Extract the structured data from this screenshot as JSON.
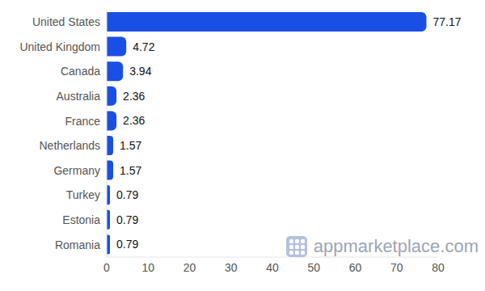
{
  "chart_data": {
    "type": "bar",
    "orientation": "horizontal",
    "categories": [
      "United States",
      "United Kingdom",
      "Canada",
      "Australia",
      "France",
      "Netherlands",
      "Germany",
      "Turkey",
      "Estonia",
      "Romania"
    ],
    "values": [
      77.17,
      4.72,
      3.94,
      2.36,
      2.36,
      1.57,
      1.57,
      0.79,
      0.79,
      0.79
    ],
    "color": "#1a4fe6",
    "xlim": [
      0,
      80
    ],
    "xticks": [
      0,
      10,
      20,
      30,
      40,
      50,
      60,
      70,
      80
    ],
    "grid": false,
    "data_labels": true,
    "annotations": [
      "appmarketplace.com"
    ]
  }
}
